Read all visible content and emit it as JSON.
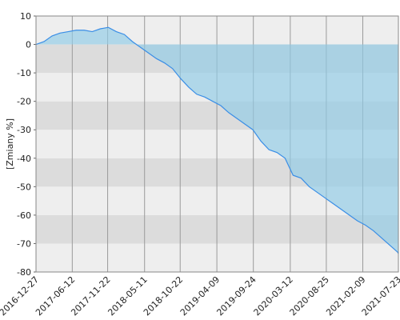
{
  "chart_data": {
    "type": "area",
    "y_label": "[Zmiany %]",
    "x": [
      "2016-12-27",
      "2017-02-02",
      "2017-03-11",
      "2017-04-17",
      "2017-05-24",
      "2017-06-30",
      "2017-08-06",
      "2017-09-12",
      "2017-10-19",
      "2017-11-25",
      "2018-01-01",
      "2018-02-07",
      "2018-03-16",
      "2018-04-22",
      "2018-05-29",
      "2018-07-05",
      "2018-08-11",
      "2018-09-17",
      "2018-10-24",
      "2018-11-30",
      "2019-01-06",
      "2019-02-12",
      "2019-03-21",
      "2019-04-27",
      "2019-06-03",
      "2019-07-10",
      "2019-08-16",
      "2019-09-22",
      "2019-10-29",
      "2019-12-05",
      "2020-01-11",
      "2020-02-17",
      "2020-03-25",
      "2020-05-01",
      "2020-06-07",
      "2020-07-14",
      "2020-08-20",
      "2020-09-26",
      "2020-11-02",
      "2020-12-09",
      "2021-01-15",
      "2021-02-21",
      "2021-03-30",
      "2021-05-06",
      "2021-06-12",
      "2021-07-19",
      "2021-07-23"
    ],
    "values": [
      0,
      1,
      3,
      4,
      4.5,
      5,
      5,
      4.5,
      5.5,
      6,
      4.5,
      3.5,
      1,
      -1,
      -3,
      -5,
      -6.5,
      -8.5,
      -12,
      -15,
      -17.5,
      -18.5,
      -20,
      -21.5,
      -24,
      -26,
      -28,
      -30,
      -34,
      -37,
      -38,
      -40,
      -46,
      -47,
      -50,
      -52,
      -54,
      -56,
      -58,
      -60,
      -62,
      -63.5,
      -65.5,
      -68,
      -70.5,
      -73,
      -73.5
    ],
    "color": "#3a8ee6",
    "fill_color": "#8fcbe6",
    "xlim": [
      "2016-12-27",
      "2021-07-23"
    ],
    "xticks": [
      "2016-12-27",
      "2017-06-12",
      "2017-11-22",
      "2018-05-11",
      "2018-10-22",
      "2019-04-09",
      "2019-09-24",
      "2020-03-12",
      "2020-08-25",
      "2021-02-09",
      "2021-07-23"
    ],
    "ylim": [
      -80,
      10
    ],
    "yticks": [
      -80,
      -70,
      -60,
      -50,
      -40,
      -30,
      -20,
      -10,
      0,
      10
    ],
    "grid": true
  }
}
